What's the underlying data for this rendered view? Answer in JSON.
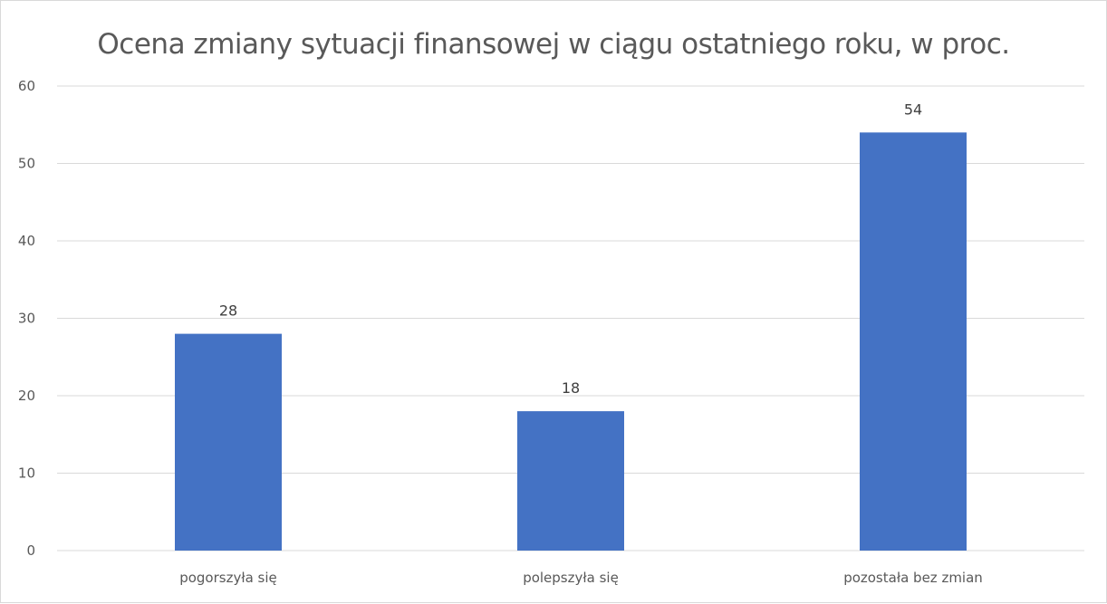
{
  "chart_data": {
    "type": "bar",
    "title": "Ocena zmiany sytuacji finansowej w ciągu ostatniego roku, w proc.",
    "categories": [
      "pogorszyła się",
      "polepszyła się",
      "pozostała bez zmian"
    ],
    "values": [
      28,
      18,
      54
    ],
    "data_labels": [
      "28",
      "18",
      "54"
    ],
    "ylim": [
      0,
      60
    ],
    "yticks": [
      0,
      10,
      20,
      30,
      40,
      50,
      60
    ],
    "xlabel": "",
    "ylabel": "",
    "grid": true,
    "bar_color": "#4472c4",
    "gridline_color": "#d9d9d9"
  }
}
